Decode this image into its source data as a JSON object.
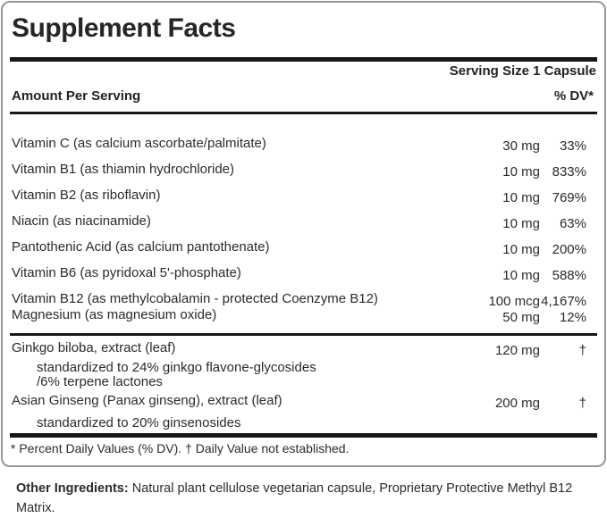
{
  "panel": {
    "title": "Supplement Facts",
    "serving_size": "Serving Size 1 Capsule",
    "amount_header": "Amount Per Serving",
    "dv_header": "% DV*",
    "nutrients": [
      {
        "name": "Vitamin C (as calcium ascorbate/palmitate)",
        "amount": "30 mg",
        "dv": "33%"
      },
      {
        "name": "Vitamin B1 (as thiamin hydrochloride)",
        "amount": "10 mg",
        "dv": "833%"
      },
      {
        "name": "Vitamin B2 (as riboflavin)",
        "amount": "10 mg",
        "dv": "769%"
      },
      {
        "name": "Niacin (as niacinamide)",
        "amount": "10 mg",
        "dv": "63%"
      },
      {
        "name": "Pantothenic Acid (as calcium pantothenate)",
        "amount": "10 mg",
        "dv": "200%"
      },
      {
        "name": "Vitamin B6 (as pyridoxal 5'-phosphate)",
        "amount": "10 mg",
        "dv": "588%"
      },
      {
        "name": "Vitamin B12 (as methylcobalamin - protected Coenzyme B12)",
        "amount": "100 mcg",
        "dv": "4,167%"
      },
      {
        "name": "Magnesium (as magnesium oxide)",
        "amount": "50 mg",
        "dv": "12%"
      }
    ],
    "botanicals": [
      {
        "name": "Ginkgo biloba, extract (leaf)",
        "amount": "120 mg",
        "dv": "†",
        "sub": "standardized to 24% ginkgo flavone-glycosides\n/6% terpene lactones"
      },
      {
        "name": "Asian Ginseng (Panax ginseng), extract (leaf)",
        "amount": "200 mg",
        "dv": "†",
        "sub": "standardized to 20% ginsenosides"
      }
    ],
    "footnote": "* Percent Daily Values (% DV). † Daily Value not established."
  },
  "other_ingredients": {
    "label": "Other Ingredients:",
    "text": "Natural plant cellulose vegetarian capsule, Proprietary Protective Methyl B12 Matrix."
  },
  "colors": {
    "background": "#ffffff",
    "text": "#2b2b2b",
    "rule": "#171717",
    "border": "#979797"
  }
}
